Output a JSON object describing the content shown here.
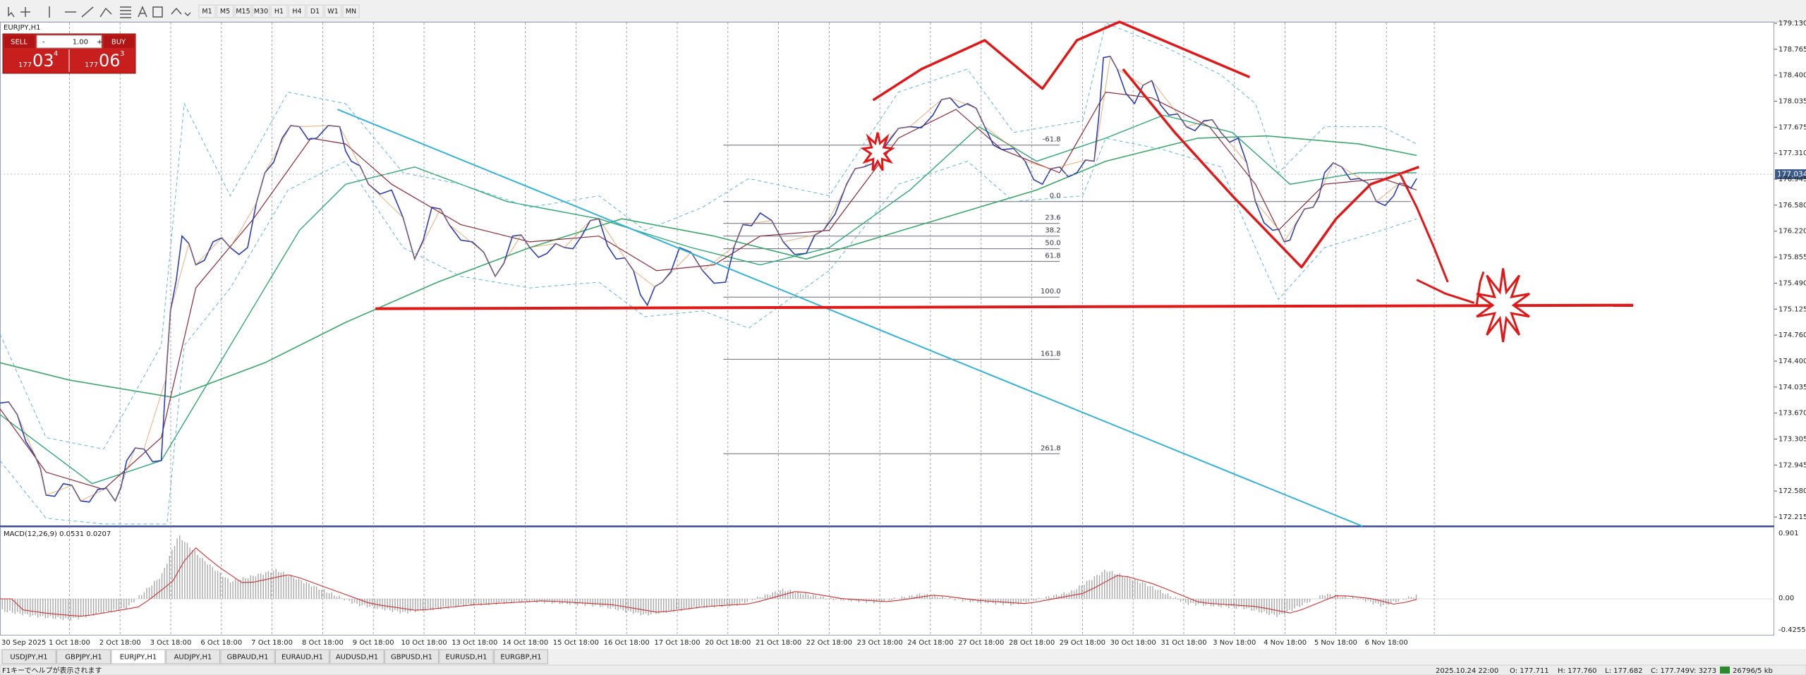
{
  "toolbar": {
    "timeframes": [
      "M1",
      "M5",
      "M15",
      "M30",
      "H1",
      "H4",
      "D1",
      "W1",
      "MN"
    ]
  },
  "symbol_label": "EURJPY,H1",
  "trade_panel": {
    "sell": "SELL",
    "lot": "1.00",
    "buy": "BUY",
    "sell_price": {
      "prefix": "177",
      "big": "03",
      "sup": "4"
    },
    "buy_price": {
      "prefix": "177",
      "big": "06",
      "sup": "3"
    }
  },
  "price_axis": [
    "179.130",
    "178.765",
    "178.400",
    "178.035",
    "177.675",
    "177.310",
    "176.945",
    "176.580",
    "176.220",
    "175.855",
    "175.490",
    "175.125",
    "174.760",
    "174.400",
    "174.035",
    "173.670",
    "173.305",
    "172.945",
    "172.580",
    "172.215"
  ],
  "current_price": "177.034",
  "fib_levels": [
    "-61.8",
    "0.0",
    "23.6",
    "38.2",
    "50.0",
    "61.8",
    "100.0",
    "161.8",
    "261.8"
  ],
  "macd": {
    "label": "MACD(12,26,9) 0.0531 0.0207",
    "axis": [
      "0.901",
      "0.00",
      "-0.4255"
    ]
  },
  "time_axis": [
    "30 Sep 2025",
    "1 Oct 18:00",
    "2 Oct 18:00",
    "3 Oct 18:00",
    "6 Oct 18:00",
    "7 Oct 18:00",
    "8 Oct 18:00",
    "9 Oct 18:00",
    "10 Oct 18:00",
    "13 Oct 18:00",
    "14 Oct 18:00",
    "15 Oct 18:00",
    "16 Oct 18:00",
    "17 Oct 18:00",
    "20 Oct 18:00",
    "21 Oct 18:00",
    "22 Oct 18:00",
    "23 Oct 18:00",
    "24 Oct 18:00",
    "27 Oct 18:00",
    "28 Oct 18:00",
    "29 Oct 18:00",
    "30 Oct 18:00",
    "31 Oct 18:00",
    "3 Nov 18:00",
    "4 Nov 18:00",
    "5 Nov 18:00",
    "6 Nov 18:00"
  ],
  "tabs": [
    "USDJPY,H1",
    "GBPJPY,H1",
    "EURJPY,H1",
    "AUDJPY,H1",
    "GBPAUD,H1",
    "EURAUD,H1",
    "AUDUSD,H1",
    "GBPUSD,H1",
    "EURUSD,H1",
    "EURGBP,H1"
  ],
  "status_bar": {
    "help": "F1キーでヘルプが表示されます",
    "datetime": "2025.10.24 22:00",
    "open": "O: 177.711",
    "high": "H: 177.760",
    "low": "L: 177.682",
    "close": "C: 177.749",
    "volume": "V: 3273",
    "traffic": "26796/5 kb"
  }
}
